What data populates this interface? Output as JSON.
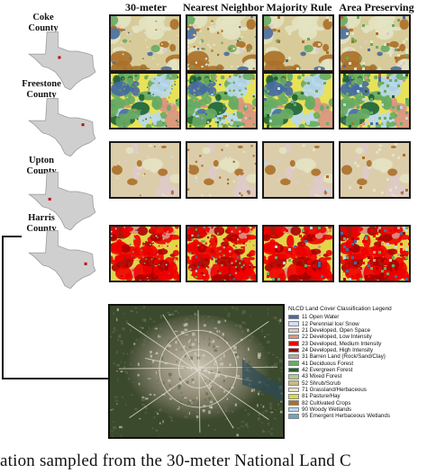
{
  "columns": [
    "30-meter",
    "Nearest Neighbor",
    "Majority Rule",
    "Area Preserving"
  ],
  "counties": [
    {
      "name_lines": [
        "Coke",
        "County"
      ],
      "theme": "coke"
    },
    {
      "name_lines": [
        "Freestone",
        "County"
      ],
      "theme": "freestone"
    },
    {
      "name_lines": [
        "Upton",
        "County"
      ],
      "theme": "upton"
    },
    {
      "name_lines": [
        "Harris",
        "County"
      ],
      "theme": "harris"
    }
  ],
  "legend": {
    "title": "NLCD Land Cover Classification Legend",
    "items": [
      {
        "label": "11 Open Water",
        "color": "#476ba1"
      },
      {
        "label": "12 Perennial Ice/ Snow",
        "color": "#d1defa"
      },
      {
        "label": "21 Developed, Open Space",
        "color": "#decaca"
      },
      {
        "label": "22 Developed, Low Intensity",
        "color": "#d99482"
      },
      {
        "label": "23 Developed, Medium Intensity",
        "color": "#ee0000"
      },
      {
        "label": "24 Developed, High Intensity",
        "color": "#ab0000"
      },
      {
        "label": "31 Barren Land (Rock/Sand/Clay)",
        "color": "#b3aca3"
      },
      {
        "label": "41 Deciduous Forest",
        "color": "#68ab63"
      },
      {
        "label": "42 Evergreen Forest",
        "color": "#1c6330"
      },
      {
        "label": "43 Mixed Forest",
        "color": "#b5ca8f"
      },
      {
        "label": "52 Shrub/Scrub",
        "color": "#ccba7d"
      },
      {
        "label": "71 Grassland/Herbaceous",
        "color": "#e3e3c2"
      },
      {
        "label": "81 Pasture/Hay",
        "color": "#dbd83c"
      },
      {
        "label": "82 Cultivated Crops",
        "color": "#ab7028"
      },
      {
        "label": "90 Woody Wetlands",
        "color": "#bad9eb"
      },
      {
        "label": "95 Emergent Herbaceous Wetlands",
        "color": "#70a3ba"
      }
    ]
  },
  "caption": "ation sampled from the 30-meter National Land C"
}
